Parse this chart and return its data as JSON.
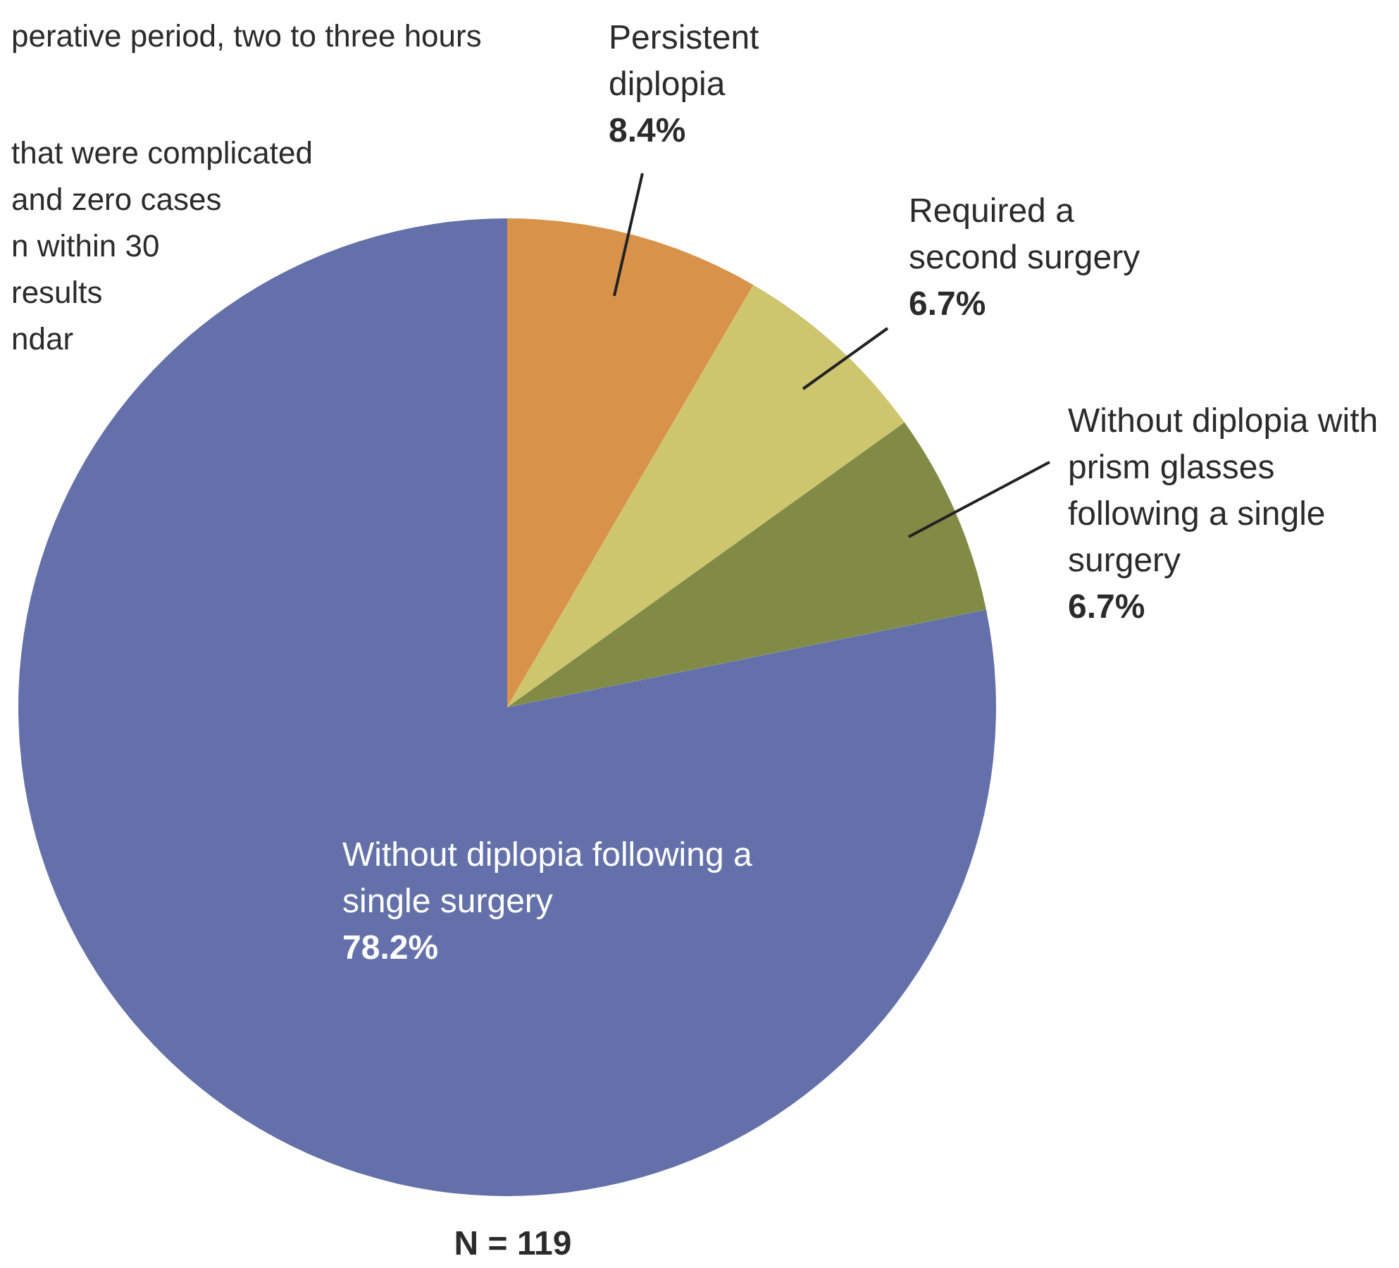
{
  "chart_data": {
    "type": "pie",
    "categories": [
      "Persistent diplopia",
      "Required a second surgery",
      "Without diplopia with prism glasses following a single surgery",
      "Without diplopia following a single surgery"
    ],
    "values": [
      8.4,
      6.7,
      6.7,
      78.2
    ],
    "value_labels": [
      "8.4%",
      "6.7%",
      "6.7%",
      "78.2%"
    ],
    "colors": [
      "#d8924a",
      "#cdc66e",
      "#818b45",
      "#6470aa"
    ],
    "legend": false,
    "annotations": [
      "N = 119",
      "perative period, two to three hours",
      "that were complicated",
      "and zero cases",
      "n within 30",
      "results",
      "ndar"
    ]
  }
}
